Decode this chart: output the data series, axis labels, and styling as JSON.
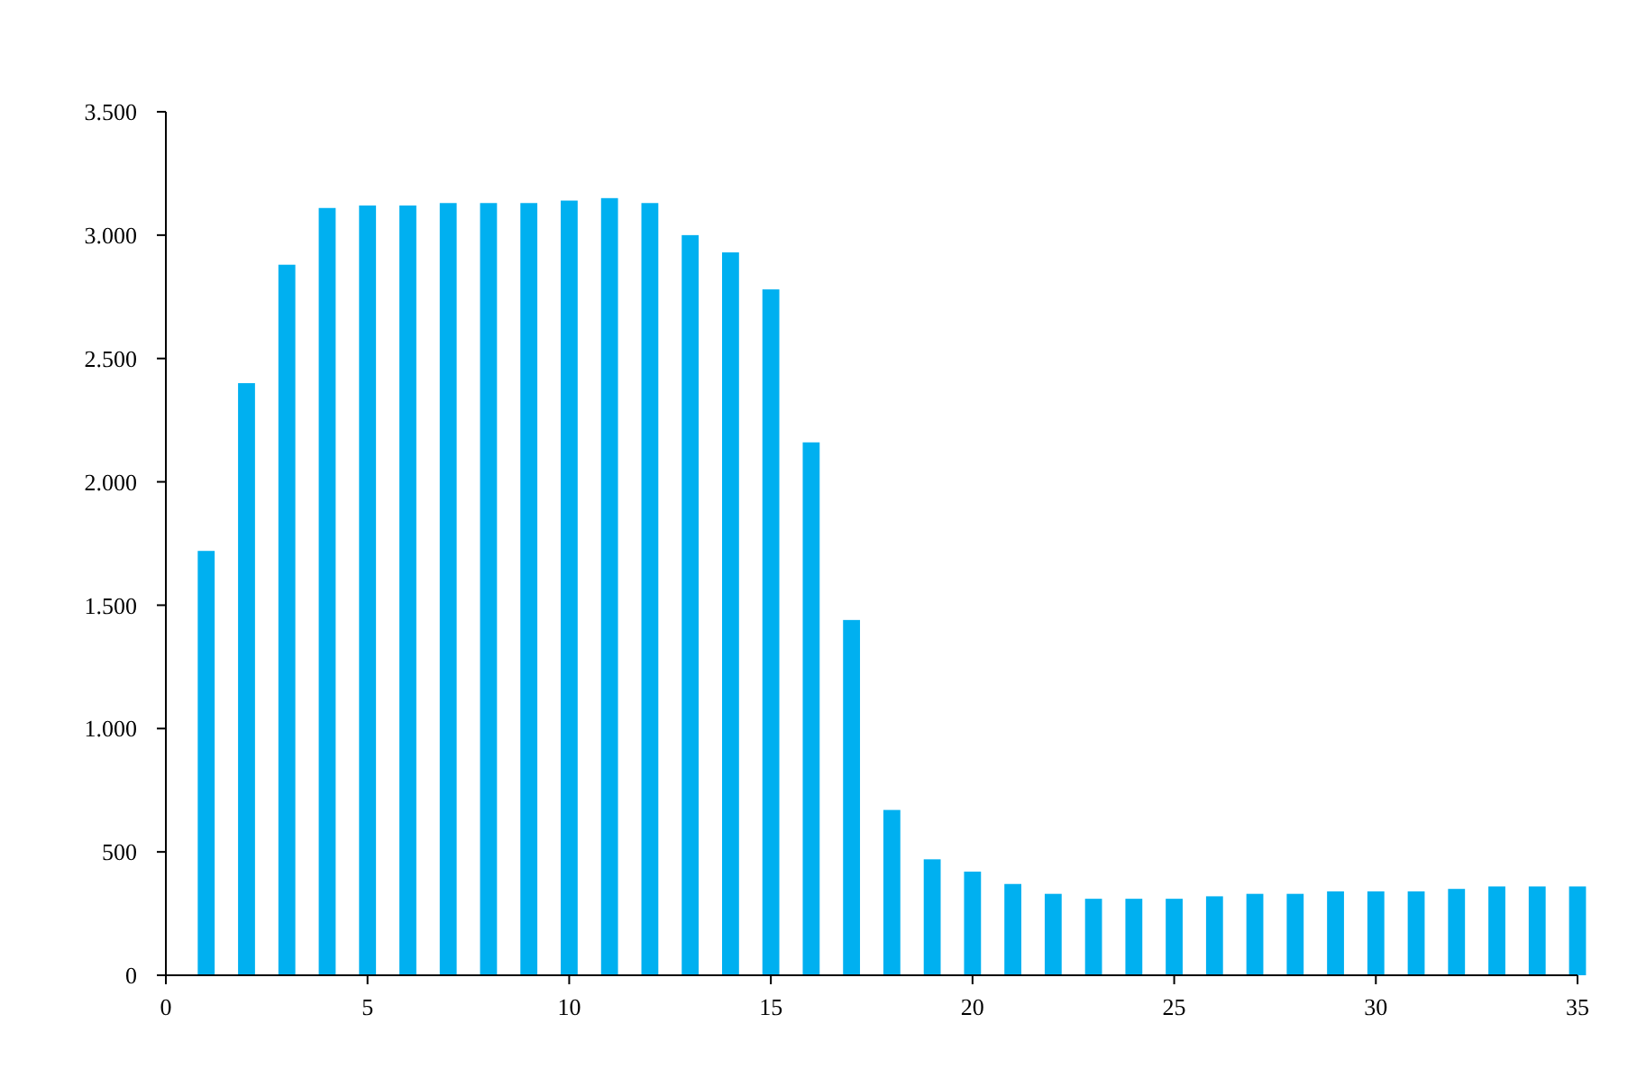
{
  "chart_data": {
    "type": "bar",
    "x": [
      1,
      2,
      3,
      4,
      5,
      6,
      7,
      8,
      9,
      10,
      11,
      12,
      13,
      14,
      15,
      16,
      17,
      18,
      19,
      20,
      21,
      22,
      23,
      24,
      25,
      26,
      27,
      28,
      29,
      30,
      31,
      32,
      33,
      34,
      35
    ],
    "values": [
      1720,
      2400,
      2880,
      3110,
      3120,
      3120,
      3130,
      3130,
      3130,
      3140,
      3150,
      3130,
      3000,
      2930,
      2780,
      2160,
      1440,
      670,
      470,
      420,
      370,
      330,
      310,
      310,
      310,
      320,
      330,
      330,
      340,
      340,
      340,
      350,
      360,
      360,
      360
    ],
    "color": "#00b0f0",
    "xlim": [
      0,
      35
    ],
    "xticks": [
      0,
      5,
      10,
      15,
      20,
      25,
      30,
      35
    ],
    "ylim": [
      0,
      3500
    ],
    "yticks": [
      0,
      500,
      {
        "value": 1000,
        "label": "1.000"
      },
      {
        "value": 1500,
        "label": "1.500"
      },
      {
        "value": 2000,
        "label": "2.000"
      },
      {
        "value": 2500,
        "label": "2.500"
      },
      {
        "value": 3000,
        "label": "3.000"
      },
      {
        "value": 3500,
        "label": "3.500"
      }
    ],
    "grid": false
  }
}
